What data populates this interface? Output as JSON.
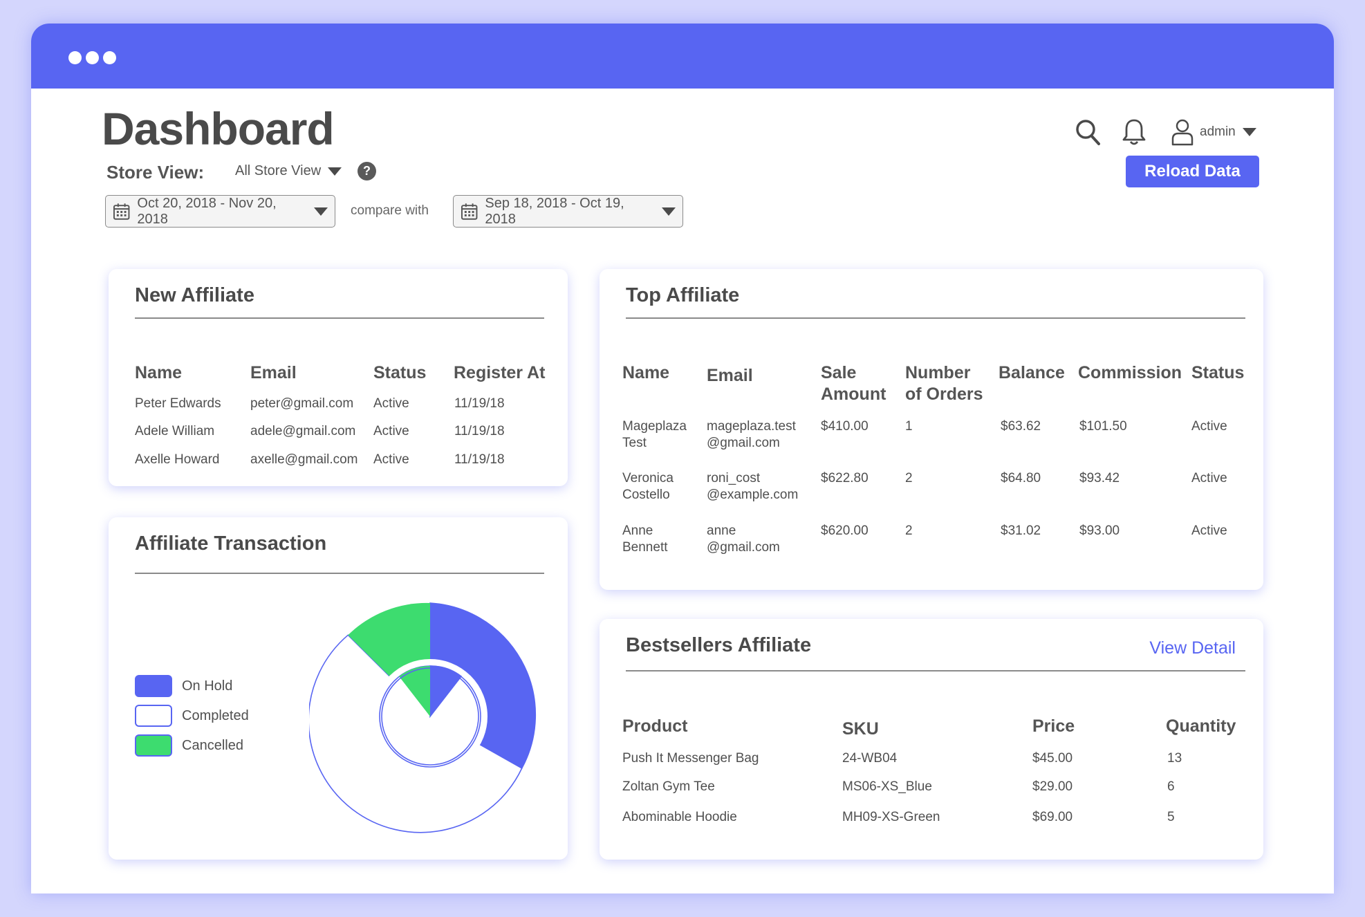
{
  "header": {
    "title": "Dashboard",
    "store_view_label": "Store View:",
    "store_view_value": "All Store View",
    "help": "?",
    "date_range": "Oct 20, 2018 - Nov 20, 2018",
    "compare_label": "compare with",
    "compare_range": "Sep 18, 2018 - Oct 19, 2018",
    "user": "admin",
    "reload_label": "Reload Data"
  },
  "new_affiliate": {
    "title": "New Affiliate",
    "columns": [
      "Name",
      "Email",
      "Status",
      "Register At"
    ],
    "rows": [
      [
        "Peter Edwards",
        "peter@gmail.com",
        "Active",
        "11/19/18"
      ],
      [
        "Adele William",
        "adele@gmail.com",
        "Active",
        "11/19/18"
      ],
      [
        "Axelle Howard",
        "axelle@gmail.com",
        "Active",
        "11/19/18"
      ]
    ]
  },
  "top_affiliate": {
    "title": "Top Affiliate",
    "columns": [
      [
        "Name"
      ],
      [
        "Email"
      ],
      [
        "Sale",
        "Amount"
      ],
      [
        "Number",
        "of Orders"
      ],
      [
        "Balance"
      ],
      [
        "Commission"
      ],
      [
        "Status"
      ]
    ],
    "rows": [
      [
        [
          "Mageplaza",
          "Test"
        ],
        [
          "mageplaza.test",
          "@gmail.com"
        ],
        [
          "$410.00"
        ],
        [
          "1"
        ],
        [
          "$63.62"
        ],
        [
          "$101.50"
        ],
        [
          "Active"
        ]
      ],
      [
        [
          "Veronica",
          "Costello"
        ],
        [
          "roni_cost",
          "@example.com"
        ],
        [
          "$622.80"
        ],
        [
          "2"
        ],
        [
          "$64.80"
        ],
        [
          "$93.42"
        ],
        [
          "Active"
        ]
      ],
      [
        [
          "Anne",
          "Bennett"
        ],
        [
          "anne",
          "@gmail.com"
        ],
        [
          "$620.00"
        ],
        [
          "2"
        ],
        [
          "$31.02"
        ],
        [
          "$93.00"
        ],
        [
          "Active"
        ]
      ]
    ]
  },
  "affiliate_transaction": {
    "title": "Affiliate Transaction",
    "legend": [
      {
        "label": "On Hold",
        "color": "#5865f2"
      },
      {
        "label": "Completed",
        "color": "#ffffff"
      },
      {
        "label": "Cancelled",
        "color": "#3ddc6f"
      }
    ]
  },
  "bestsellers": {
    "title": "Bestsellers Affiliate",
    "view_detail": "View Detail",
    "columns": [
      "Product",
      "SKU",
      "Price",
      "Quantity"
    ],
    "rows": [
      [
        "Push It Messenger Bag",
        "24-WB04",
        "$45.00",
        "13"
      ],
      [
        "Zoltan Gym Tee",
        "MS06-XS_Blue",
        "$29.00",
        "6"
      ],
      [
        "Abominable Hoodie",
        "MH09-XS-Green",
        "$69.00",
        "5"
      ]
    ]
  },
  "colors": {
    "accent": "#5865f2",
    "green": "#3ddc6f",
    "background": "#d4d6fd"
  },
  "icons": [
    "search-icon",
    "bell-icon",
    "user-icon",
    "calendar-icon",
    "help-icon",
    "chevron-down-icon"
  ]
}
